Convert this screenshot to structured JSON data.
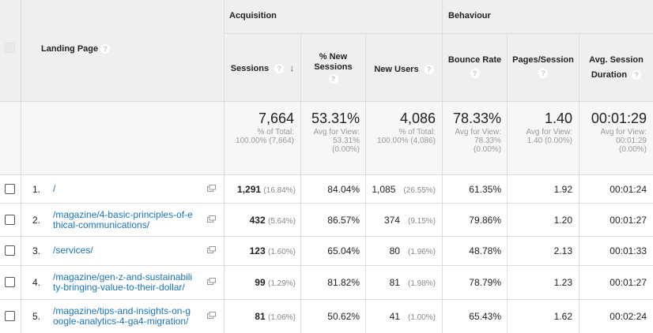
{
  "header": {
    "groups": {
      "acquisition": "Acquisition",
      "behaviour": "Behaviour"
    },
    "landing_page_label": "Landing Page",
    "columns": {
      "sessions": "Sessions",
      "pct_new_sessions_line1": "% New",
      "pct_new_sessions_line2": "Sessions",
      "new_users": "New Users",
      "bounce_rate": "Bounce Rate",
      "pages_session": "Pages/Session",
      "avg_session_line1": "Avg. Session",
      "avg_session_line2": "Duration"
    },
    "help_glyph": "?",
    "sort_glyph": "↓"
  },
  "totals": {
    "sessions": {
      "value": "7,664",
      "sub1": "% of Total:",
      "sub2": "100.00% (7,664)"
    },
    "pct_new_sessions": {
      "value": "53.31%",
      "sub1": "Avg for View:",
      "sub2": "53.31%",
      "sub3": "(0.00%)"
    },
    "new_users": {
      "value": "4,086",
      "sub1": "% of Total:",
      "sub2": "100.00% (4,086)"
    },
    "bounce_rate": {
      "value": "78.33%",
      "sub1": "Avg for View:",
      "sub2": "78.33%",
      "sub3": "(0.00%)"
    },
    "pages_session": {
      "value": "1.40",
      "sub1": "Avg for View:",
      "sub2": "1.40 (0.00%)"
    },
    "avg_duration": {
      "value": "00:01:29",
      "sub1": "Avg for View:",
      "sub2": "00:01:29",
      "sub3": "(0.00%)"
    }
  },
  "rows": [
    {
      "index": "1.",
      "page_line1": "/",
      "page_line2": "",
      "sessions": "1,291",
      "sessions_pct": "(16.84%)",
      "pct_new": "84.04%",
      "new_users": "1,085",
      "new_users_pct": "(26.55%)",
      "bounce": "61.35%",
      "pages": "1.92",
      "duration": "00:01:24"
    },
    {
      "index": "2.",
      "page_line1": "/magazine/4-basic-principles-of-e",
      "page_line2": "thical-communications/",
      "sessions": "432",
      "sessions_pct": "(5.64%)",
      "pct_new": "86.57%",
      "new_users": "374",
      "new_users_pct": "(9.15%)",
      "bounce": "79.86%",
      "pages": "1.20",
      "duration": "00:01:27"
    },
    {
      "index": "3.",
      "page_line1": "/services/",
      "page_line2": "",
      "sessions": "123",
      "sessions_pct": "(1.60%)",
      "pct_new": "65.04%",
      "new_users": "80",
      "new_users_pct": "(1.96%)",
      "bounce": "48.78%",
      "pages": "2.13",
      "duration": "00:01:33"
    },
    {
      "index": "4.",
      "page_line1": "/magazine/gen-z-and-sustainabili",
      "page_line2": "ty-bringing-value-to-their-dollar/",
      "sessions": "99",
      "sessions_pct": "(1.29%)",
      "pct_new": "81.82%",
      "new_users": "81",
      "new_users_pct": "(1.98%)",
      "bounce": "78.79%",
      "pages": "1.23",
      "duration": "00:01:27"
    },
    {
      "index": "5.",
      "page_line1": "/magazine/tips-and-insights-on-g",
      "page_line2": "oogle-analytics-4-ga4-migration/",
      "sessions": "81",
      "sessions_pct": "(1.06%)",
      "pct_new": "50.62%",
      "new_users": "41",
      "new_users_pct": "(1.00%)",
      "bounce": "65.43%",
      "pages": "1.62",
      "duration": "00:02:24"
    }
  ]
}
